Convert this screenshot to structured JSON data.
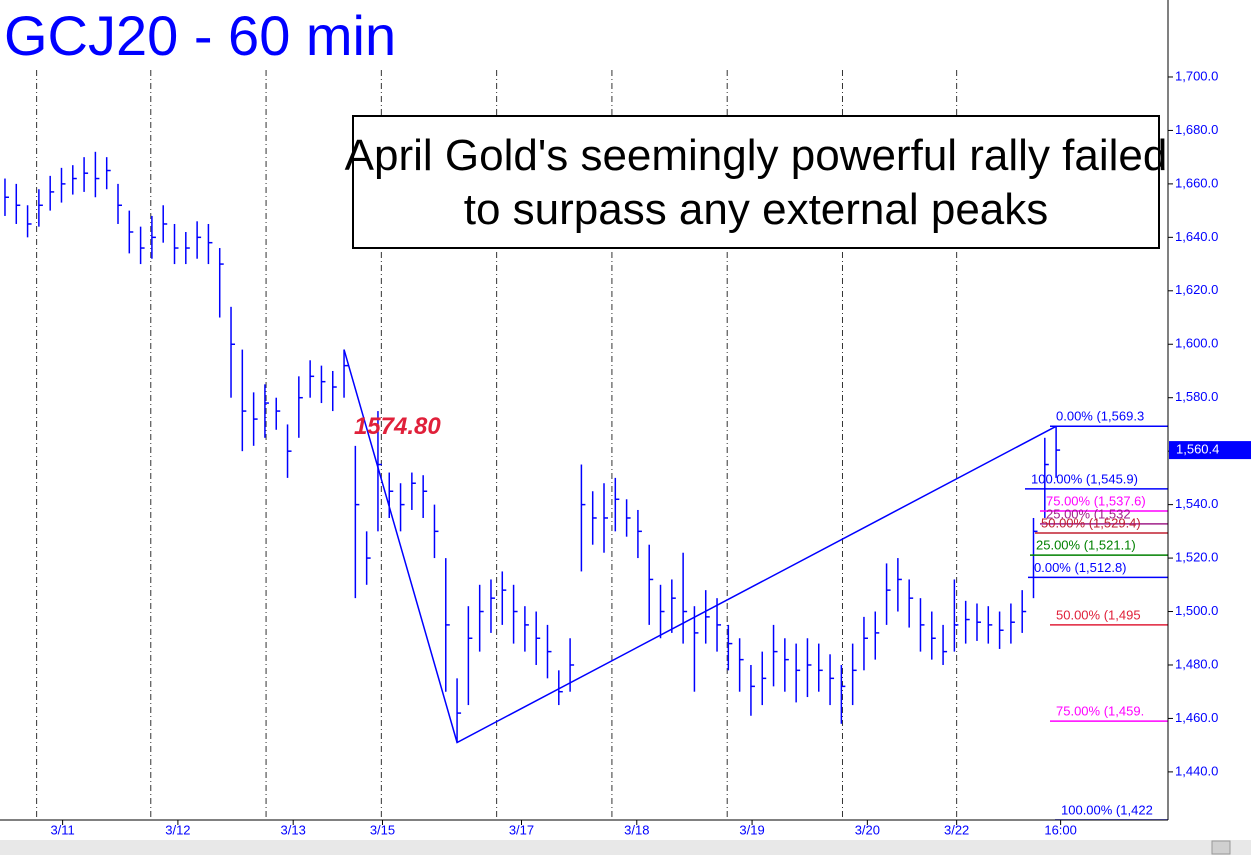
{
  "chart_data": {
    "type": "ohlc",
    "title": "GCJ20 - 60 min",
    "annotation": "April Gold's seemingly powerful rally failed to surpass any external peaks",
    "color": "#0000ff",
    "xlim": [
      -0.44,
      102.9
    ],
    "ylim": [
      1422,
      1728.8
    ],
    "yticks": [
      {
        "value": 1440,
        "label": "1,440.0"
      },
      {
        "value": 1460,
        "label": "1,460.0"
      },
      {
        "value": 1480,
        "label": "1,480.0"
      },
      {
        "value": 1500,
        "label": "1,500.0"
      },
      {
        "value": 1520,
        "label": "1,520.0"
      },
      {
        "value": 1540,
        "label": "1,540.0"
      },
      {
        "value": 1560,
        "label": "1,560.0"
      },
      {
        "value": 1580,
        "label": "1,580.0"
      },
      {
        "value": 1600,
        "label": "1,600.0"
      },
      {
        "value": 1620,
        "label": "1,620.0"
      },
      {
        "value": 1640,
        "label": "1,640.0"
      },
      {
        "value": 1660,
        "label": "1,660.0"
      },
      {
        "value": 1680,
        "label": "1,680.0"
      },
      {
        "value": 1700,
        "label": "1,700.0"
      }
    ],
    "xticks": [
      {
        "value": 5.1,
        "label": "3/11"
      },
      {
        "value": 15.3,
        "label": "3/12"
      },
      {
        "value": 25.5,
        "label": "3/13"
      },
      {
        "value": 33.4,
        "label": "3/15"
      },
      {
        "value": 45.7,
        "label": "3/17"
      },
      {
        "value": 55.9,
        "label": "3/18"
      },
      {
        "value": 66.1,
        "label": "3/19"
      },
      {
        "value": 76.3,
        "label": "3/20"
      },
      {
        "value": 84.2,
        "label": "3/22"
      },
      {
        "value": 93.4,
        "label": "16:00"
      }
    ],
    "session_breaks": [
      2.8,
      12.9,
      23.1,
      33.3,
      43.5,
      53.7,
      63.9,
      74.1,
      84.2
    ],
    "high": [
      1662,
      1660,
      1652,
      1658,
      1663,
      1666,
      1667,
      1670,
      1672,
      1670,
      1660,
      1650,
      1644,
      1648,
      1652,
      1645,
      1642,
      1646,
      1645,
      1636,
      1614,
      1598,
      1582,
      1585,
      1580,
      1570,
      1588,
      1594,
      1592,
      1590,
      1598,
      1562,
      1530,
      1575,
      1552,
      1548,
      1552,
      1551,
      1540,
      1520,
      1475,
      1502,
      1510,
      1512,
      1515,
      1510,
      1502,
      1500,
      1495,
      1478,
      1490,
      1555,
      1545,
      1548,
      1550,
      1542,
      1538,
      1525,
      1510,
      1512,
      1522,
      1502,
      1508,
      1505,
      1495,
      1490,
      1480,
      1485,
      1495,
      1490,
      1488,
      1490,
      1488,
      1484,
      1480,
      1488,
      1498,
      1500,
      1518,
      1520,
      1512,
      1505,
      1500,
      1495,
      1512,
      1504,
      1503,
      1502,
      1500,
      1503,
      1508,
      1535,
      1565,
      1569.3
    ],
    "low": [
      1648,
      1645,
      1640,
      1644,
      1650,
      1653,
      1656,
      1657,
      1655,
      1658,
      1645,
      1634,
      1630,
      1632,
      1638,
      1630,
      1630,
      1632,
      1630,
      1610,
      1580,
      1560,
      1562,
      1565,
      1568,
      1550,
      1565,
      1580,
      1578,
      1575,
      1580,
      1505,
      1510,
      1530,
      1535,
      1530,
      1538,
      1535,
      1520,
      1470,
      1451,
      1465,
      1485,
      1492,
      1495,
      1488,
      1485,
      1480,
      1475,
      1465,
      1470,
      1515,
      1525,
      1522,
      1530,
      1528,
      1520,
      1495,
      1490,
      1492,
      1488,
      1470,
      1488,
      1485,
      1478,
      1470,
      1461,
      1465,
      1472,
      1470,
      1466,
      1468,
      1470,
      1465,
      1458,
      1465,
      1478,
      1482,
      1495,
      1500,
      1494,
      1485,
      1482,
      1480,
      1485,
      1488,
      1489,
      1488,
      1486,
      1488,
      1492,
      1505,
      1535,
      1550
    ],
    "close": [
      1655,
      1652,
      1645,
      1652,
      1657,
      1660,
      1662,
      1664,
      1662,
      1665,
      1652,
      1642,
      1636,
      1640,
      1645,
      1636,
      1636,
      1640,
      1638,
      1630,
      1600,
      1575,
      1572,
      1578,
      1575,
      1560,
      1580,
      1588,
      1586,
      1584,
      1592,
      1540,
      1520,
      1555,
      1545,
      1540,
      1548,
      1545,
      1530,
      1495,
      1462,
      1490,
      1500,
      1505,
      1508,
      1500,
      1495,
      1490,
      1485,
      1470,
      1480,
      1540,
      1535,
      1535,
      1542,
      1535,
      1530,
      1512,
      1500,
      1505,
      1500,
      1492,
      1498,
      1495,
      1488,
      1482,
      1472,
      1475,
      1485,
      1482,
      1478,
      1480,
      1478,
      1475,
      1472,
      1478,
      1490,
      1492,
      1508,
      1512,
      1505,
      1495,
      1490,
      1485,
      1495,
      1497,
      1496,
      1495,
      1493,
      1496,
      1500,
      1530,
      1555,
      1560.4
    ],
    "peak_label": {
      "value": 1574.8,
      "label": "1574.80",
      "color": "#e0203a"
    },
    "last_price": {
      "value": 1560.4,
      "label": "1,560.4"
    },
    "trendline": [
      {
        "x": 30,
        "y": 1598
      },
      {
        "x": 40,
        "y": 1451
      },
      {
        "x": 93,
        "y": 1569.3
      }
    ],
    "levels": [
      {
        "label": "0.00% (1,569.3",
        "value": 1569.3,
        "color": "#0000ff"
      },
      {
        "label": "100.00% (1,545.9)",
        "value": 1545.9,
        "color": "#0000ff"
      },
      {
        "label": "75.00% (1,537.6)",
        "value": 1537.6,
        "color": "#ff00ff"
      },
      {
        "label": "25.00% (1,532",
        "value": 1532.8,
        "color": "#a0208a"
      },
      {
        "label": "50.00% (1,529.4)",
        "value": 1529.4,
        "color": "#c02030"
      },
      {
        "label": "25.00% (1,521.1)",
        "value": 1521.1,
        "color": "#008000"
      },
      {
        "label": "0.00% (1,512.8)",
        "value": 1512.8,
        "color": "#0000ff"
      },
      {
        "label": "50.00% (1,495",
        "value": 1495,
        "color": "#e0203a"
      },
      {
        "label": "75.00% (1,459.",
        "value": 1459,
        "color": "#ff00ff"
      },
      {
        "label": "100.00% (1,422",
        "value": 1422,
        "color": "#0000ff"
      }
    ]
  }
}
